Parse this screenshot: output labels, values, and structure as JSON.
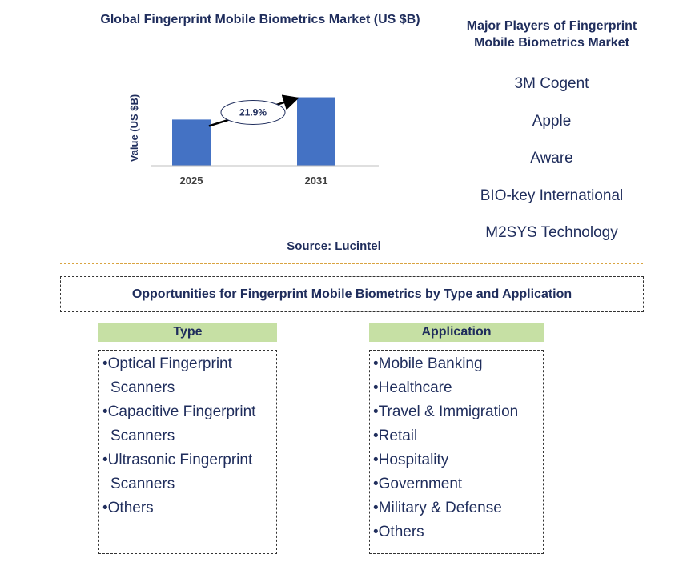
{
  "chart_data": {
    "type": "bar",
    "title": "Global Fingerprint Mobile Biometrics Market (US $B)",
    "categories": [
      "2025",
      "2031"
    ],
    "values": [
      3.1,
      4.6
    ],
    "xlabel": "",
    "ylabel": "Value (US $B)",
    "annotation": "21.9%",
    "bar_color": "#4472c4",
    "source": "Source: Lucintel"
  },
  "players": {
    "title": "Major Players of Fingerprint Mobile Biometrics Market",
    "items": [
      "3M Cogent",
      "Apple",
      "Aware",
      "BIO-key International",
      "M2SYS Technology"
    ]
  },
  "opportunities": {
    "title": "Opportunities for Fingerprint Mobile Biometrics by Type and Application",
    "type": {
      "header": "Type",
      "items": [
        "Optical Fingerprint Scanners",
        "Capacitive Fingerprint Scanners",
        "Ultrasonic Fingerprint Scanners",
        "Others"
      ]
    },
    "application": {
      "header": "Application",
      "items": [
        "Mobile Banking",
        "Healthcare",
        "Travel & Immigration",
        "Retail",
        "Hospitality",
        "Government",
        "Military & Defense",
        "Others"
      ]
    }
  }
}
